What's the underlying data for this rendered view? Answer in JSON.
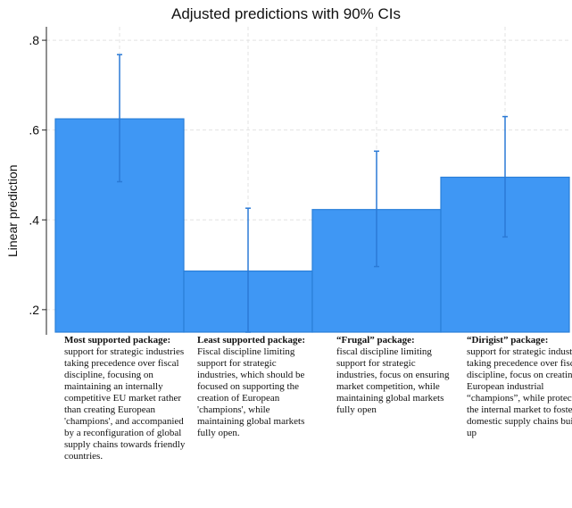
{
  "chart_data": {
    "type": "bar",
    "title": "Adjusted predictions with 90% CIs",
    "xlabel": "",
    "ylabel": "Linear prediction",
    "ylim": [
      0.15,
      0.83
    ],
    "yticks": [
      0.2,
      0.4,
      0.6,
      0.8
    ],
    "ytick_labels": [
      ".2",
      ".4",
      ".6",
      ".8"
    ],
    "grid": true,
    "bar_color": "#3f97f4",
    "categories": [
      {
        "head": "Most supported package:",
        "body": "support for strategic industries taking precedence over fiscal discipline, focusing on maintaining an internally competitive EU market rather than creating European 'champions', and accompanied by a reconfiguration of global supply chains towards friendly countries."
      },
      {
        "head": "Least supported package:",
        "body": "Fiscal discipline limiting support for strategic industries, which should be focused on supporting the creation of European 'champions', while maintaining global markets fully open."
      },
      {
        "head": "“Frugal” package:",
        "body": "fiscal discipline limiting support for strategic industries, focus on ensuring market competition, while maintaining global markets fully open"
      },
      {
        "head": "“Dirigist” package:",
        "body": "support for strategic industries taking precedence over fiscal discipline, focus on creating European industrial “champions”, while protecting the internal market to foster domestic supply chains build-up"
      }
    ],
    "values": [
      0.625,
      0.286,
      0.423,
      0.495
    ],
    "ci_low": [
      0.485,
      0.15,
      0.296,
      0.362
    ],
    "ci_high": [
      0.768,
      0.426,
      0.553,
      0.63
    ]
  }
}
